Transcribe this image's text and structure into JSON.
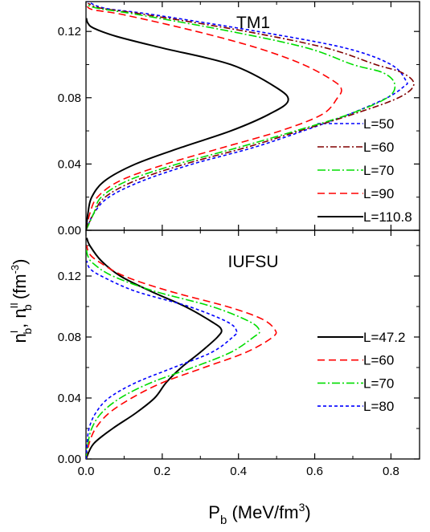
{
  "chart_data": [
    {
      "type": "line",
      "title": "TM1",
      "xlim": [
        0.0,
        0.875
      ],
      "ylim": [
        0.0,
        0.138
      ],
      "xticks": [
        "0.0",
        "0.2",
        "0.4",
        "0.6",
        "0.8"
      ],
      "yticks": [
        "0.00",
        "0.04",
        "0.08",
        "0.12"
      ],
      "show_x_tick_labels": false,
      "legend_position": "right",
      "series": [
        {
          "name": "L=50",
          "color": "#0000ff",
          "dash": "4,3",
          "width": 1.6,
          "points": [
            [
              0,
              0
            ],
            [
              0.02,
              0.01
            ],
            [
              0.06,
              0.02
            ],
            [
              0.15,
              0.03
            ],
            [
              0.28,
              0.04
            ],
            [
              0.44,
              0.05
            ],
            [
              0.57,
              0.06
            ],
            [
              0.69,
              0.07
            ],
            [
              0.79,
              0.08
            ],
            [
              0.835,
              0.087
            ],
            [
              0.84,
              0.09
            ],
            [
              0.8,
              0.1
            ],
            [
              0.68,
              0.11
            ],
            [
              0.45,
              0.12
            ],
            [
              0.18,
              0.13
            ],
            [
              0.05,
              0.134
            ],
            [
              0.005,
              0.138
            ]
          ]
        },
        {
          "name": "L=60",
          "color": "#800000",
          "dash": "8,3,2,3",
          "width": 1.6,
          "points": [
            [
              0,
              0
            ],
            [
              0.02,
              0.01
            ],
            [
              0.05,
              0.02
            ],
            [
              0.13,
              0.03
            ],
            [
              0.26,
              0.04
            ],
            [
              0.42,
              0.05
            ],
            [
              0.56,
              0.06
            ],
            [
              0.7,
              0.07
            ],
            [
              0.82,
              0.08
            ],
            [
              0.86,
              0.088
            ],
            [
              0.83,
              0.095
            ],
            [
              0.76,
              0.1
            ],
            [
              0.63,
              0.11
            ],
            [
              0.42,
              0.12
            ],
            [
              0.16,
              0.13
            ],
            [
              0.04,
              0.134
            ],
            [
              0.005,
              0.137
            ]
          ]
        },
        {
          "name": "L=70",
          "color": "#00dd00",
          "dash": "10,3,2,3",
          "width": 1.6,
          "points": [
            [
              0,
              0
            ],
            [
              0.02,
              0.01
            ],
            [
              0.04,
              0.02
            ],
            [
              0.11,
              0.03
            ],
            [
              0.24,
              0.04
            ],
            [
              0.4,
              0.05
            ],
            [
              0.55,
              0.06
            ],
            [
              0.69,
              0.07
            ],
            [
              0.79,
              0.08
            ],
            [
              0.81,
              0.088
            ],
            [
              0.78,
              0.095
            ],
            [
              0.7,
              0.1
            ],
            [
              0.58,
              0.11
            ],
            [
              0.38,
              0.12
            ],
            [
              0.14,
              0.13
            ],
            [
              0.03,
              0.134
            ],
            [
              0.004,
              0.136
            ]
          ]
        },
        {
          "name": "L=90",
          "color": "#ff0000",
          "dash": "9,5",
          "width": 1.6,
          "points": [
            [
              0,
              0
            ],
            [
              0.01,
              0.01
            ],
            [
              0.03,
              0.02
            ],
            [
              0.09,
              0.03
            ],
            [
              0.21,
              0.04
            ],
            [
              0.36,
              0.05
            ],
            [
              0.51,
              0.06
            ],
            [
              0.62,
              0.07
            ],
            [
              0.66,
              0.08
            ],
            [
              0.67,
              0.085
            ],
            [
              0.65,
              0.09
            ],
            [
              0.57,
              0.1
            ],
            [
              0.45,
              0.11
            ],
            [
              0.29,
              0.12
            ],
            [
              0.1,
              0.13
            ],
            [
              0.02,
              0.133
            ],
            [
              0.003,
              0.135
            ]
          ]
        },
        {
          "name": "L=110.8",
          "color": "#000000",
          "dash": "",
          "width": 2.0,
          "points": [
            [
              0,
              0
            ],
            [
              0.005,
              0.01
            ],
            [
              0.015,
              0.02
            ],
            [
              0.05,
              0.03
            ],
            [
              0.13,
              0.04
            ],
            [
              0.25,
              0.05
            ],
            [
              0.38,
              0.06
            ],
            [
              0.48,
              0.07
            ],
            [
              0.53,
              0.078
            ],
            [
              0.5,
              0.086
            ],
            [
              0.38,
              0.1
            ],
            [
              0.2,
              0.11
            ],
            [
              0.08,
              0.117
            ],
            [
              0.02,
              0.122
            ],
            [
              0.005,
              0.125
            ],
            [
              0.001,
              0.128
            ]
          ]
        }
      ]
    },
    {
      "type": "line",
      "title": "IUFSU",
      "xlim": [
        0.0,
        0.875
      ],
      "ylim": [
        0.0,
        0.15
      ],
      "xticks": [
        "0.0",
        "0.2",
        "0.4",
        "0.6",
        "0.8"
      ],
      "yticks": [
        "0.00",
        "0.04",
        "0.08",
        "0.12"
      ],
      "show_x_tick_labels": true,
      "legend_position": "right",
      "series": [
        {
          "name": "L=47.2",
          "color": "#000000",
          "dash": "",
          "width": 2.0,
          "points": [
            [
              0,
              0
            ],
            [
              0.02,
              0.01
            ],
            [
              0.07,
              0.02
            ],
            [
              0.13,
              0.03
            ],
            [
              0.18,
              0.04
            ],
            [
              0.21,
              0.05
            ],
            [
              0.25,
              0.06
            ],
            [
              0.3,
              0.07
            ],
            [
              0.345,
              0.08
            ],
            [
              0.355,
              0.085
            ],
            [
              0.33,
              0.09
            ],
            [
              0.26,
              0.1
            ],
            [
              0.17,
              0.11
            ],
            [
              0.09,
              0.12
            ],
            [
              0.04,
              0.13
            ],
            [
              0.01,
              0.14
            ],
            [
              0.002,
              0.145
            ]
          ]
        },
        {
          "name": "L=60",
          "color": "#ff0000",
          "dash": "9,5",
          "width": 1.6,
          "points": [
            [
              0,
              0
            ],
            [
              0.008,
              0.01
            ],
            [
              0.025,
              0.02
            ],
            [
              0.06,
              0.03
            ],
            [
              0.12,
              0.04
            ],
            [
              0.2,
              0.05
            ],
            [
              0.31,
              0.06
            ],
            [
              0.42,
              0.07
            ],
            [
              0.49,
              0.08
            ],
            [
              0.495,
              0.085
            ],
            [
              0.46,
              0.092
            ],
            [
              0.37,
              0.1
            ],
            [
              0.22,
              0.11
            ],
            [
              0.1,
              0.12
            ],
            [
              0.03,
              0.13
            ],
            [
              0.008,
              0.135
            ],
            [
              0.002,
              0.14
            ]
          ]
        },
        {
          "name": "L=70",
          "color": "#00dd00",
          "dash": "10,3,2,3",
          "width": 1.6,
          "points": [
            [
              0,
              0
            ],
            [
              0.005,
              0.01
            ],
            [
              0.015,
              0.02
            ],
            [
              0.04,
              0.03
            ],
            [
              0.09,
              0.04
            ],
            [
              0.17,
              0.05
            ],
            [
              0.28,
              0.06
            ],
            [
              0.38,
              0.07
            ],
            [
              0.44,
              0.08
            ],
            [
              0.455,
              0.084
            ],
            [
              0.43,
              0.09
            ],
            [
              0.33,
              0.1
            ],
            [
              0.18,
              0.11
            ],
            [
              0.07,
              0.12
            ],
            [
              0.02,
              0.128
            ],
            [
              0.005,
              0.133
            ],
            [
              0.001,
              0.138
            ]
          ]
        },
        {
          "name": "L=80",
          "color": "#0000ff",
          "dash": "4,3",
          "width": 1.6,
          "points": [
            [
              0,
              0
            ],
            [
              0.003,
              0.01
            ],
            [
              0.008,
              0.02
            ],
            [
              0.025,
              0.03
            ],
            [
              0.06,
              0.04
            ],
            [
              0.13,
              0.05
            ],
            [
              0.23,
              0.06
            ],
            [
              0.33,
              0.07
            ],
            [
              0.385,
              0.08
            ],
            [
              0.395,
              0.084
            ],
            [
              0.37,
              0.09
            ],
            [
              0.27,
              0.1
            ],
            [
              0.13,
              0.11
            ],
            [
              0.04,
              0.12
            ],
            [
              0.01,
              0.125
            ],
            [
              0.002,
              0.13
            ]
          ]
        }
      ]
    }
  ],
  "ylabel": {
    "base": "n",
    "sup1": "I",
    "sub1": "b",
    "sep": ", ",
    "sup2": "II",
    "sub2": "b",
    "units": " (fm",
    "units_exp": "-3",
    "units_close": ")"
  },
  "xlabel": {
    "base": "P",
    "sub": "b",
    "units": " (MeV/fm",
    "units_exp": "3",
    "units_close": ")"
  }
}
